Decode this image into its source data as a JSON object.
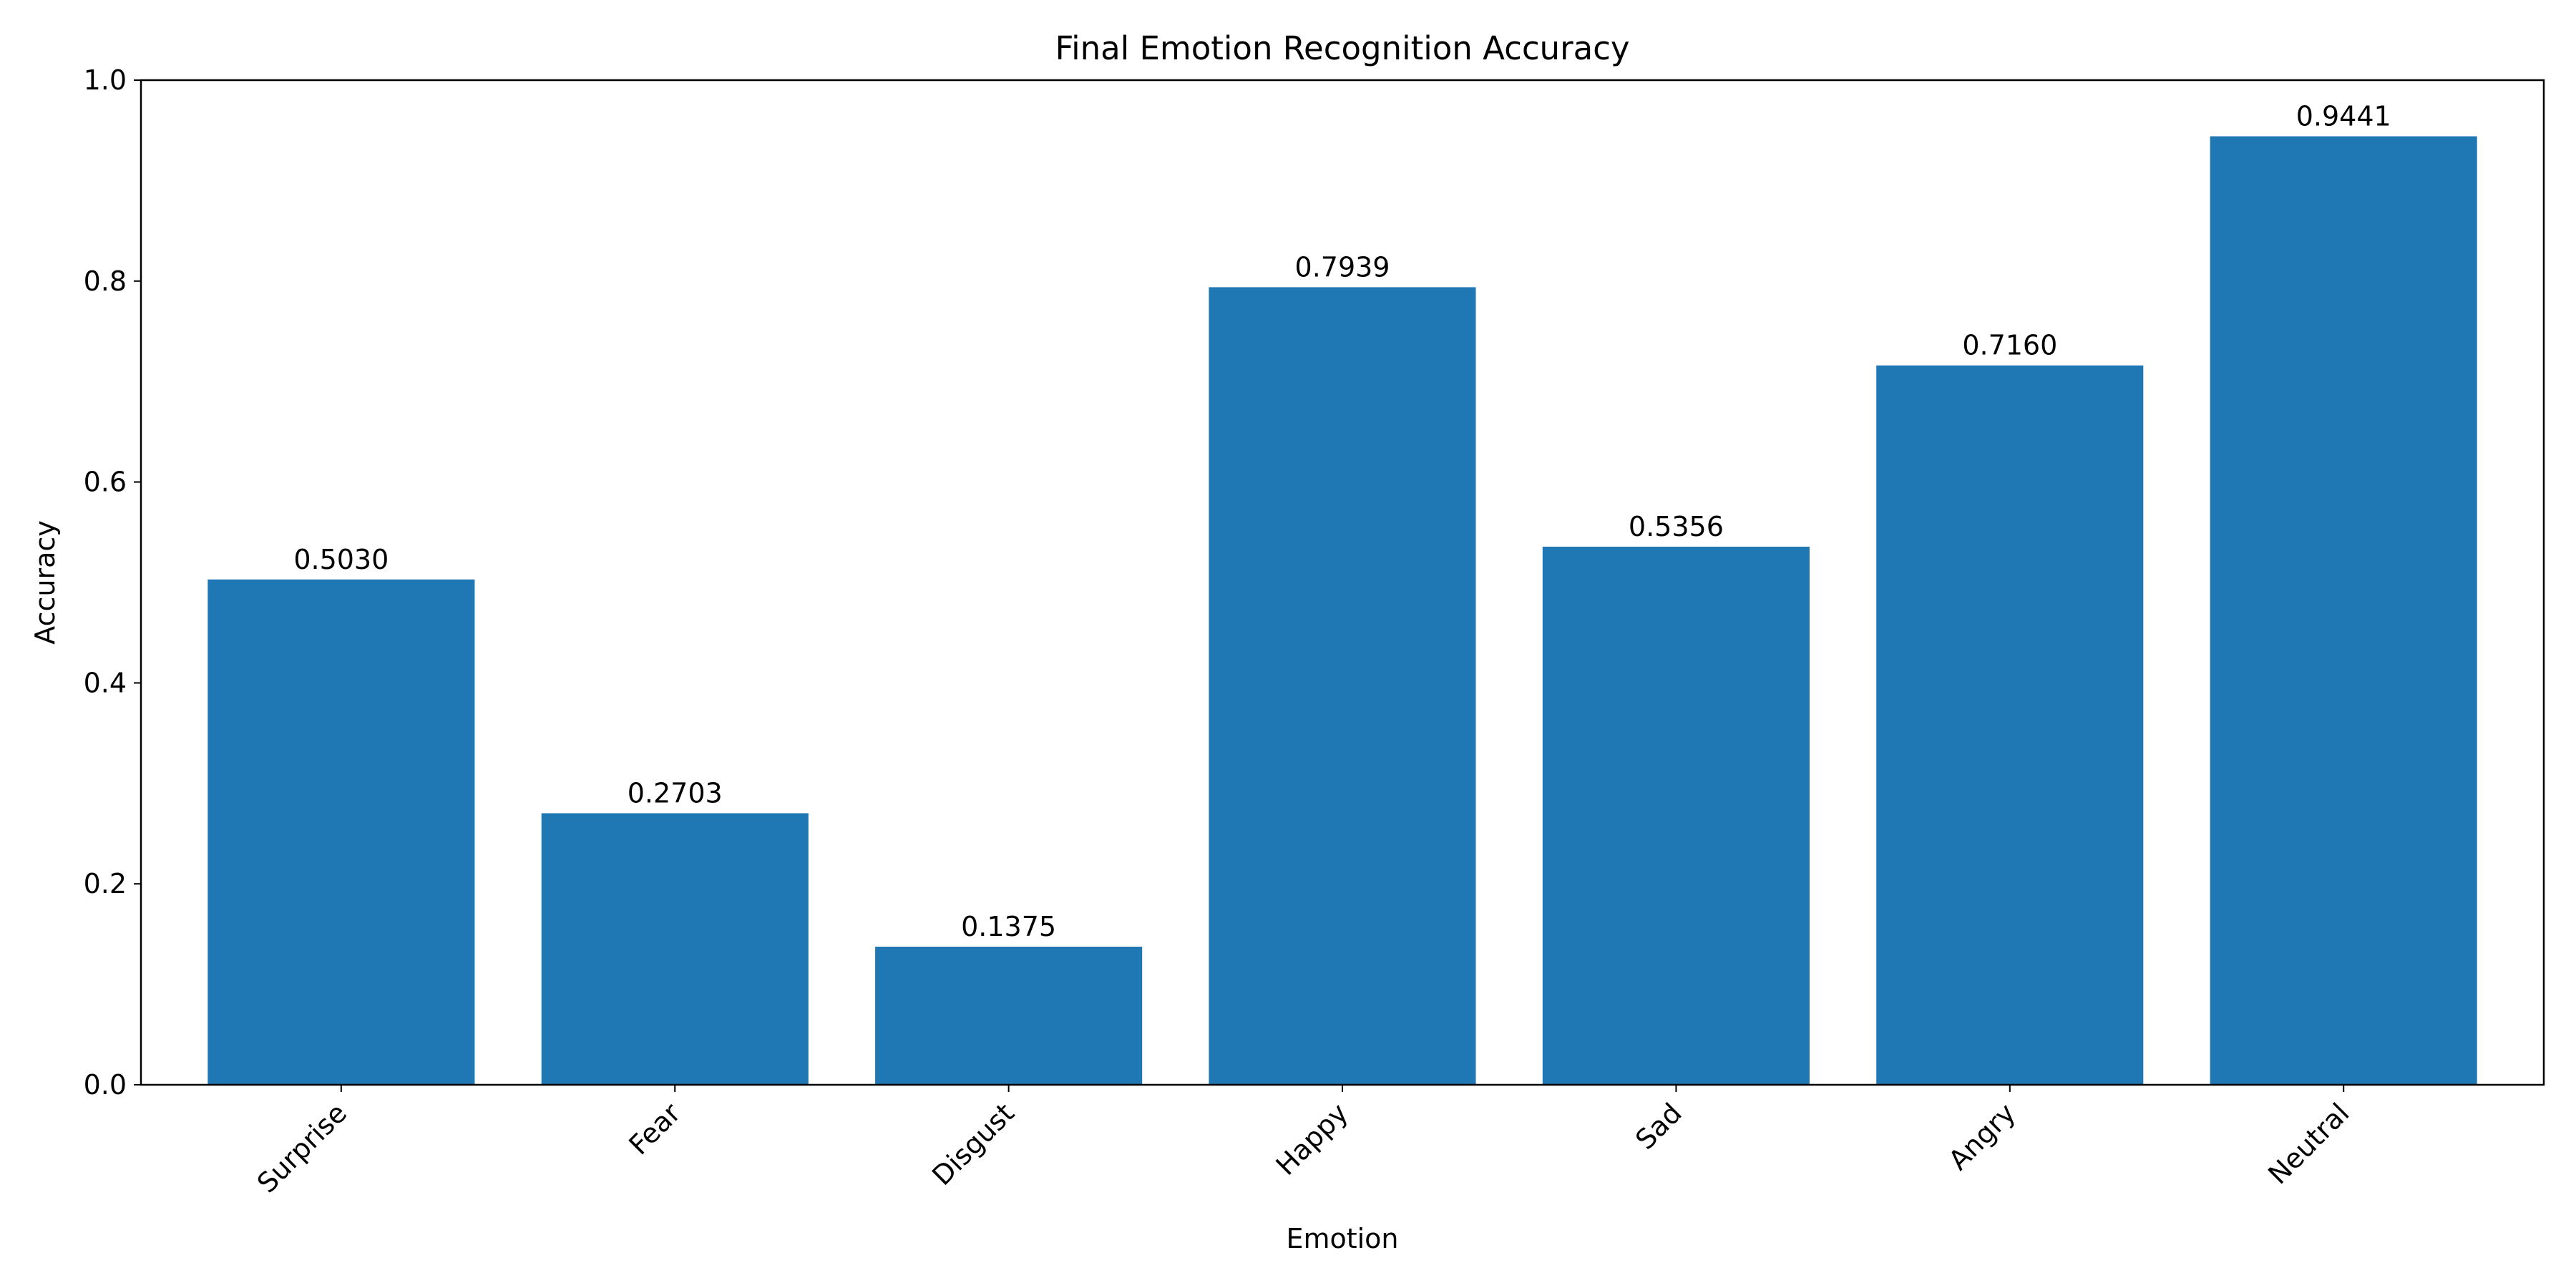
{
  "chart_data": {
    "type": "bar",
    "title": "Final Emotion Recognition Accuracy",
    "xlabel": "Emotion",
    "ylabel": "Accuracy",
    "categories": [
      "Surprise",
      "Fear",
      "Disgust",
      "Happy",
      "Sad",
      "Angry",
      "Neutral"
    ],
    "values": [
      0.503,
      0.2703,
      0.1375,
      0.7939,
      0.5356,
      0.716,
      0.9441
    ],
    "value_labels": [
      "0.5030",
      "0.2703",
      "0.1375",
      "0.7939",
      "0.5356",
      "0.7160",
      "0.9441"
    ],
    "ylim": [
      0,
      1.0
    ],
    "yticks": [
      0.0,
      0.2,
      0.4,
      0.6,
      0.8,
      1.0
    ],
    "ytick_labels": [
      "0.0",
      "0.2",
      "0.4",
      "0.6",
      "0.8",
      "1.0"
    ],
    "grid": false,
    "legend": "none",
    "bar_color": "#1f77b4"
  }
}
